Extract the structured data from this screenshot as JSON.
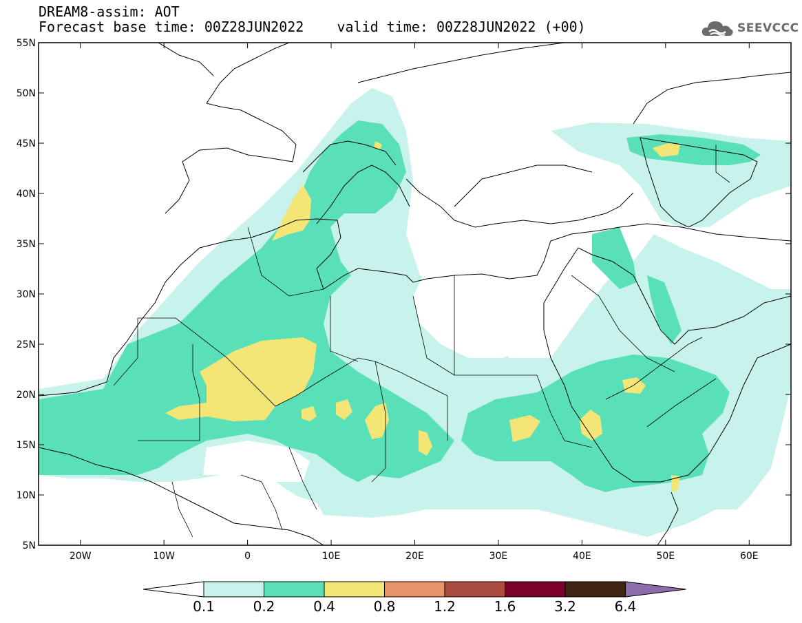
{
  "header": {
    "line1": "DREAM8-assim: AOT",
    "line2": "Forecast base time: 00Z28JUN2022    valid time: 00Z28JUN2022 (+00)"
  },
  "logo": {
    "text": "SEEVCCC",
    "icon": "cloud-icon"
  },
  "map": {
    "lon_range": [
      -25,
      65
    ],
    "lat_range": [
      5,
      55
    ],
    "lat_ticks": [
      {
        "value": 55,
        "label": "55N"
      },
      {
        "value": 50,
        "label": "50N"
      },
      {
        "value": 45,
        "label": "45N"
      },
      {
        "value": 40,
        "label": "40N"
      },
      {
        "value": 35,
        "label": "35N"
      },
      {
        "value": 30,
        "label": "30N"
      },
      {
        "value": 25,
        "label": "25N"
      },
      {
        "value": 20,
        "label": "20N"
      },
      {
        "value": 15,
        "label": "15N"
      },
      {
        "value": 10,
        "label": "10N"
      },
      {
        "value": 5,
        "label": "5N"
      }
    ],
    "lon_ticks": [
      {
        "value": -20,
        "label": "20W"
      },
      {
        "value": -10,
        "label": "10W"
      },
      {
        "value": 0,
        "label": "0"
      },
      {
        "value": 10,
        "label": "10E"
      },
      {
        "value": 20,
        "label": "20E"
      },
      {
        "value": 30,
        "label": "30E"
      },
      {
        "value": 40,
        "label": "40E"
      },
      {
        "value": 50,
        "label": "50E"
      },
      {
        "value": 60,
        "label": "60E"
      }
    ]
  },
  "colorbar": {
    "colors": [
      "#c8f2ec",
      "#5ae0b8",
      "#f4e676",
      "#e8946a",
      "#aa4c3e",
      "#7c002c",
      "#3f2412"
    ],
    "under_color": "#ffffff",
    "over_color": "#8d6cab",
    "labels": [
      "0.1",
      "0.2",
      "0.4",
      "0.8",
      "1.2",
      "1.6",
      "3.2",
      "6.4"
    ]
  }
}
